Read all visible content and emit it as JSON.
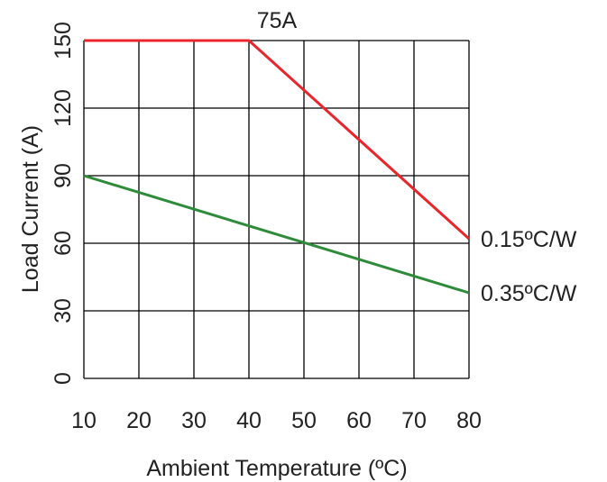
{
  "chart_data": {
    "type": "line",
    "title": "75A",
    "xlabel": "Ambient Temperature (ºC)",
    "ylabel": "Load Current (A)",
    "xlim": [
      10,
      80
    ],
    "ylim": [
      0,
      150
    ],
    "xticks": [
      "10",
      "20",
      "30",
      "40",
      "50",
      "60",
      "70",
      "80"
    ],
    "yticks": [
      "0",
      "30",
      "60",
      "90",
      "120",
      "150"
    ],
    "grid": true,
    "series": [
      {
        "name": "0.15ºC/W",
        "color": "#e8262c",
        "x": [
          10,
          40,
          80
        ],
        "y": [
          150,
          150,
          62
        ]
      },
      {
        "name": "0.35ºC/W",
        "color": "#2e8b3a",
        "x": [
          10,
          80
        ],
        "y": [
          90,
          38
        ]
      }
    ]
  }
}
